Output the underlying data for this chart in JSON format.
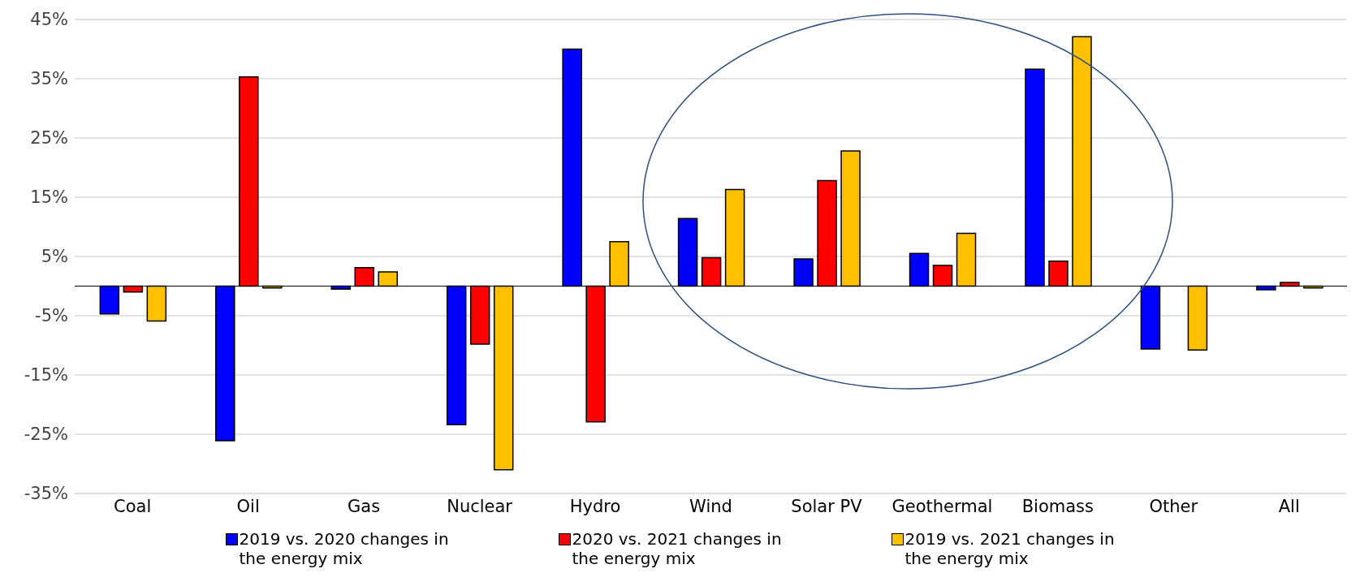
{
  "chart_data": {
    "type": "bar",
    "categories": [
      "Coal",
      "Oil",
      "Gas",
      "Nuclear",
      "Hydro",
      "Wind",
      "Solar PV",
      "Geothermal",
      "Biomass",
      "Other",
      "All"
    ],
    "series": [
      {
        "name": "2019 vs. 2020 changes in the energy mix",
        "color": "#0000ff",
        "values": [
          -4.7,
          -26.1,
          -0.5,
          -23.4,
          40,
          11.4,
          4.6,
          5.5,
          36.6,
          -10.6,
          -0.6
        ]
      },
      {
        "name": "2020 vs. 2021 changes in the energy mix",
        "color": "#ff0000",
        "values": [
          -1,
          35.3,
          3.1,
          -9.8,
          -22.9,
          4.8,
          17.8,
          3.5,
          4.2,
          0,
          0.6
        ]
      },
      {
        "name": "2019 vs. 2021 changes in the energy mix",
        "color": "#ffc000",
        "values": [
          -5.9,
          -0.3,
          2.4,
          -31,
          7.5,
          16.3,
          22.8,
          8.9,
          42.1,
          -10.8,
          -0.3
        ]
      }
    ],
    "ylim": [
      -35,
      45
    ],
    "yticks": [
      {
        "value": 45,
        "label": "45%"
      },
      {
        "value": 35,
        "label": "35%"
      },
      {
        "value": 25,
        "label": "25%"
      },
      {
        "value": 15,
        "label": "15%"
      },
      {
        "value": 5,
        "label": "5%"
      },
      {
        "value": -5,
        "label": "-5%"
      },
      {
        "value": -15,
        "label": "-15%"
      },
      {
        "value": -25,
        "label": "-25%"
      },
      {
        "value": -35,
        "label": "-35%"
      }
    ],
    "grid": "y",
    "legend": "bottom"
  }
}
